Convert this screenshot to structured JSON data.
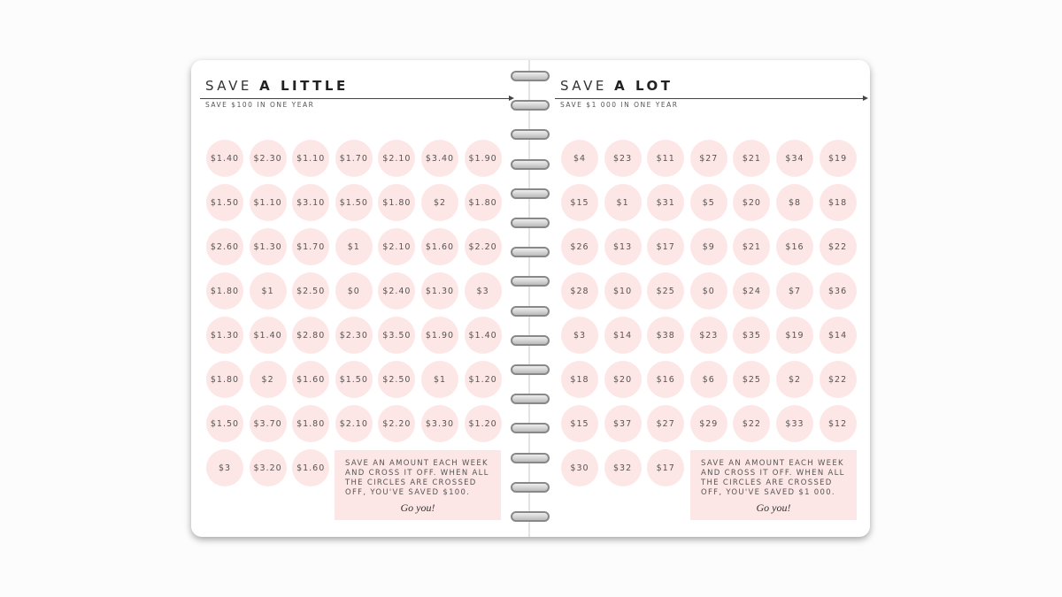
{
  "pages": [
    {
      "title_light": "SAVE",
      "title_bold": "A LITTLE",
      "subtitle": "SAVE $100 IN ONE YEAR",
      "circles": [
        [
          "$1.40",
          "$2.30",
          "$1.10",
          "$1.70",
          "$2.10",
          "$3.40",
          "$1.90"
        ],
        [
          "$1.50",
          "$1.10",
          "$3.10",
          "$1.50",
          "$1.80",
          "$2",
          "$1.80"
        ],
        [
          "$2.60",
          "$1.30",
          "$1.70",
          "$1",
          "$2.10",
          "$1.60",
          "$2.20"
        ],
        [
          "$1.80",
          "$1",
          "$2.50",
          "$0",
          "$2.40",
          "$1.30",
          "$3"
        ],
        [
          "$1.30",
          "$1.40",
          "$2.80",
          "$2.30",
          "$3.50",
          "$1.90",
          "$1.40"
        ],
        [
          "$1.80",
          "$2",
          "$1.60",
          "$1.50",
          "$2.50",
          "$1",
          "$1.20"
        ],
        [
          "$1.50",
          "$3.70",
          "$1.80",
          "$2.10",
          "$2.20",
          "$3.30",
          "$1.20"
        ],
        [
          "$3",
          "$3.20",
          "$1.60"
        ]
      ],
      "note": "SAVE AN AMOUNT EACH WEEK AND CROSS IT OFF. WHEN ALL THE CIRCLES ARE CROSSED OFF, YOU'VE SAVED $100.",
      "signoff": "Go you!"
    },
    {
      "title_light": "SAVE",
      "title_bold": "A LOT",
      "subtitle": "SAVE $1 000 IN ONE YEAR",
      "circles": [
        [
          "$4",
          "$23",
          "$11",
          "$27",
          "$21",
          "$34",
          "$19"
        ],
        [
          "$15",
          "$1",
          "$31",
          "$5",
          "$20",
          "$8",
          "$18"
        ],
        [
          "$26",
          "$13",
          "$17",
          "$9",
          "$21",
          "$16",
          "$22"
        ],
        [
          "$28",
          "$10",
          "$25",
          "$0",
          "$24",
          "$7",
          "$36"
        ],
        [
          "$3",
          "$14",
          "$38",
          "$23",
          "$35",
          "$19",
          "$14"
        ],
        [
          "$18",
          "$20",
          "$16",
          "$6",
          "$25",
          "$2",
          "$22"
        ],
        [
          "$15",
          "$37",
          "$27",
          "$29",
          "$22",
          "$33",
          "$12"
        ],
        [
          "$30",
          "$32",
          "$17"
        ]
      ],
      "note": "SAVE AN AMOUNT EACH WEEK AND CROSS IT OFF. WHEN ALL THE CIRCLES ARE CROSSED OFF, YOU'VE SAVED $1 000.",
      "signoff": "Go you!"
    }
  ]
}
